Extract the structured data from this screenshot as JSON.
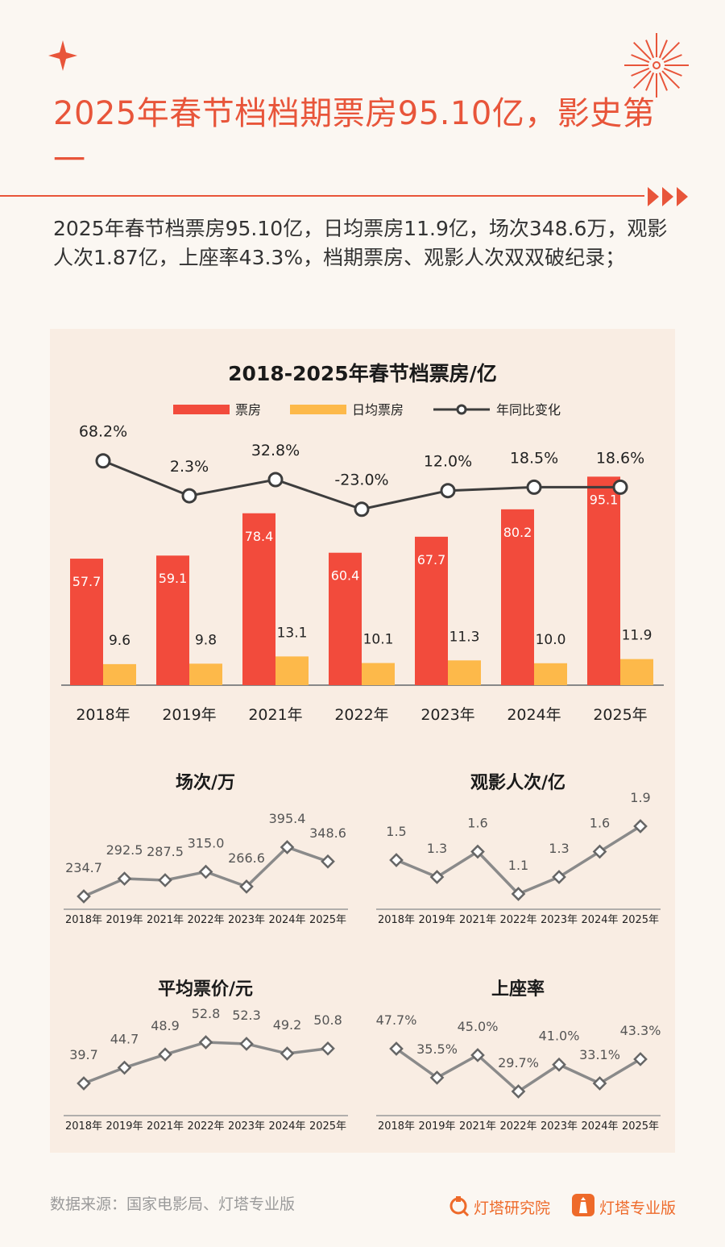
{
  "header": {
    "title": "2025年春节档档期票房95.10亿，影史第一",
    "summary": "2025年春节档票房95.10亿，日均票房11.9亿，场次348.6万，观影人次1.87亿，上座率43.3%，档期票房、观影人次双双破纪录；"
  },
  "colors": {
    "accent": "#e8553a",
    "bar_box": "#f24b3c",
    "bar_daily": "#fdb94a",
    "line": "#3d3d3d",
    "small_line": "#8a8a8a"
  },
  "chart_data": [
    {
      "type": "bar",
      "title": "2018-2025年春节档票房/亿",
      "categories": [
        "2018年",
        "2019年",
        "2021年",
        "2022年",
        "2023年",
        "2024年",
        "2025年"
      ],
      "legend": [
        "票房",
        "日均票房",
        "年同比变化"
      ],
      "series": [
        {
          "name": "票房",
          "values": [
            57.7,
            59.1,
            78.4,
            60.4,
            67.7,
            80.2,
            95.1
          ],
          "labels": [
            "57.7",
            "59.1",
            "78.4",
            "60.4",
            "67.7",
            "80.2",
            "95.1"
          ]
        },
        {
          "name": "日均票房",
          "values": [
            9.6,
            9.8,
            13.1,
            10.1,
            11.3,
            10.0,
            11.9
          ],
          "labels": [
            "9.6",
            "9.8",
            "13.1",
            "10.1",
            "11.3",
            "10.0",
            "11.9"
          ]
        },
        {
          "name": "年同比变化",
          "type": "line",
          "values": [
            68.2,
            2.3,
            32.8,
            -23.0,
            12.0,
            18.5,
            18.6
          ],
          "labels": [
            "68.2%",
            "2.3%",
            "32.8%",
            "-23.0%",
            "12.0%",
            "18.5%",
            "18.6%"
          ]
        }
      ]
    },
    {
      "type": "line",
      "title": "场次/万",
      "categories": [
        "2018年",
        "2019年",
        "2021年",
        "2022年",
        "2023年",
        "2024年",
        "2025年"
      ],
      "values": [
        234.7,
        292.5,
        287.5,
        315.0,
        266.6,
        395.4,
        348.6
      ],
      "labels": [
        "234.7",
        "292.5",
        "287.5",
        "315.0",
        "266.6",
        "395.4",
        "348.6"
      ]
    },
    {
      "type": "line",
      "title": "观影人次/亿",
      "categories": [
        "2018年",
        "2019年",
        "2021年",
        "2022年",
        "2023年",
        "2024年",
        "2025年"
      ],
      "values": [
        1.5,
        1.3,
        1.6,
        1.1,
        1.3,
        1.6,
        1.9
      ],
      "labels": [
        "1.5",
        "1.3",
        "1.6",
        "1.1",
        "1.3",
        "1.6",
        "1.9"
      ]
    },
    {
      "type": "line",
      "title": "平均票价/元",
      "categories": [
        "2018年",
        "2019年",
        "2021年",
        "2022年",
        "2023年",
        "2024年",
        "2025年"
      ],
      "values": [
        39.7,
        44.7,
        48.9,
        52.8,
        52.3,
        49.2,
        50.8
      ],
      "labels": [
        "39.7",
        "44.7",
        "48.9",
        "52.8",
        "52.3",
        "49.2",
        "50.8"
      ]
    },
    {
      "type": "line",
      "title": "上座率",
      "categories": [
        "2018年",
        "2019年",
        "2021年",
        "2022年",
        "2023年",
        "2024年",
        "2025年"
      ],
      "values": [
        47.7,
        35.5,
        45.0,
        29.7,
        41.0,
        33.1,
        43.3
      ],
      "labels": [
        "47.7%",
        "35.5%",
        "45.0%",
        "29.7%",
        "41.0%",
        "33.1%",
        "43.3%"
      ]
    }
  ],
  "footer": {
    "source": "数据来源：国家电影局、灯塔专业版",
    "brand1": "灯塔研究院",
    "brand2": "灯塔专业版"
  }
}
